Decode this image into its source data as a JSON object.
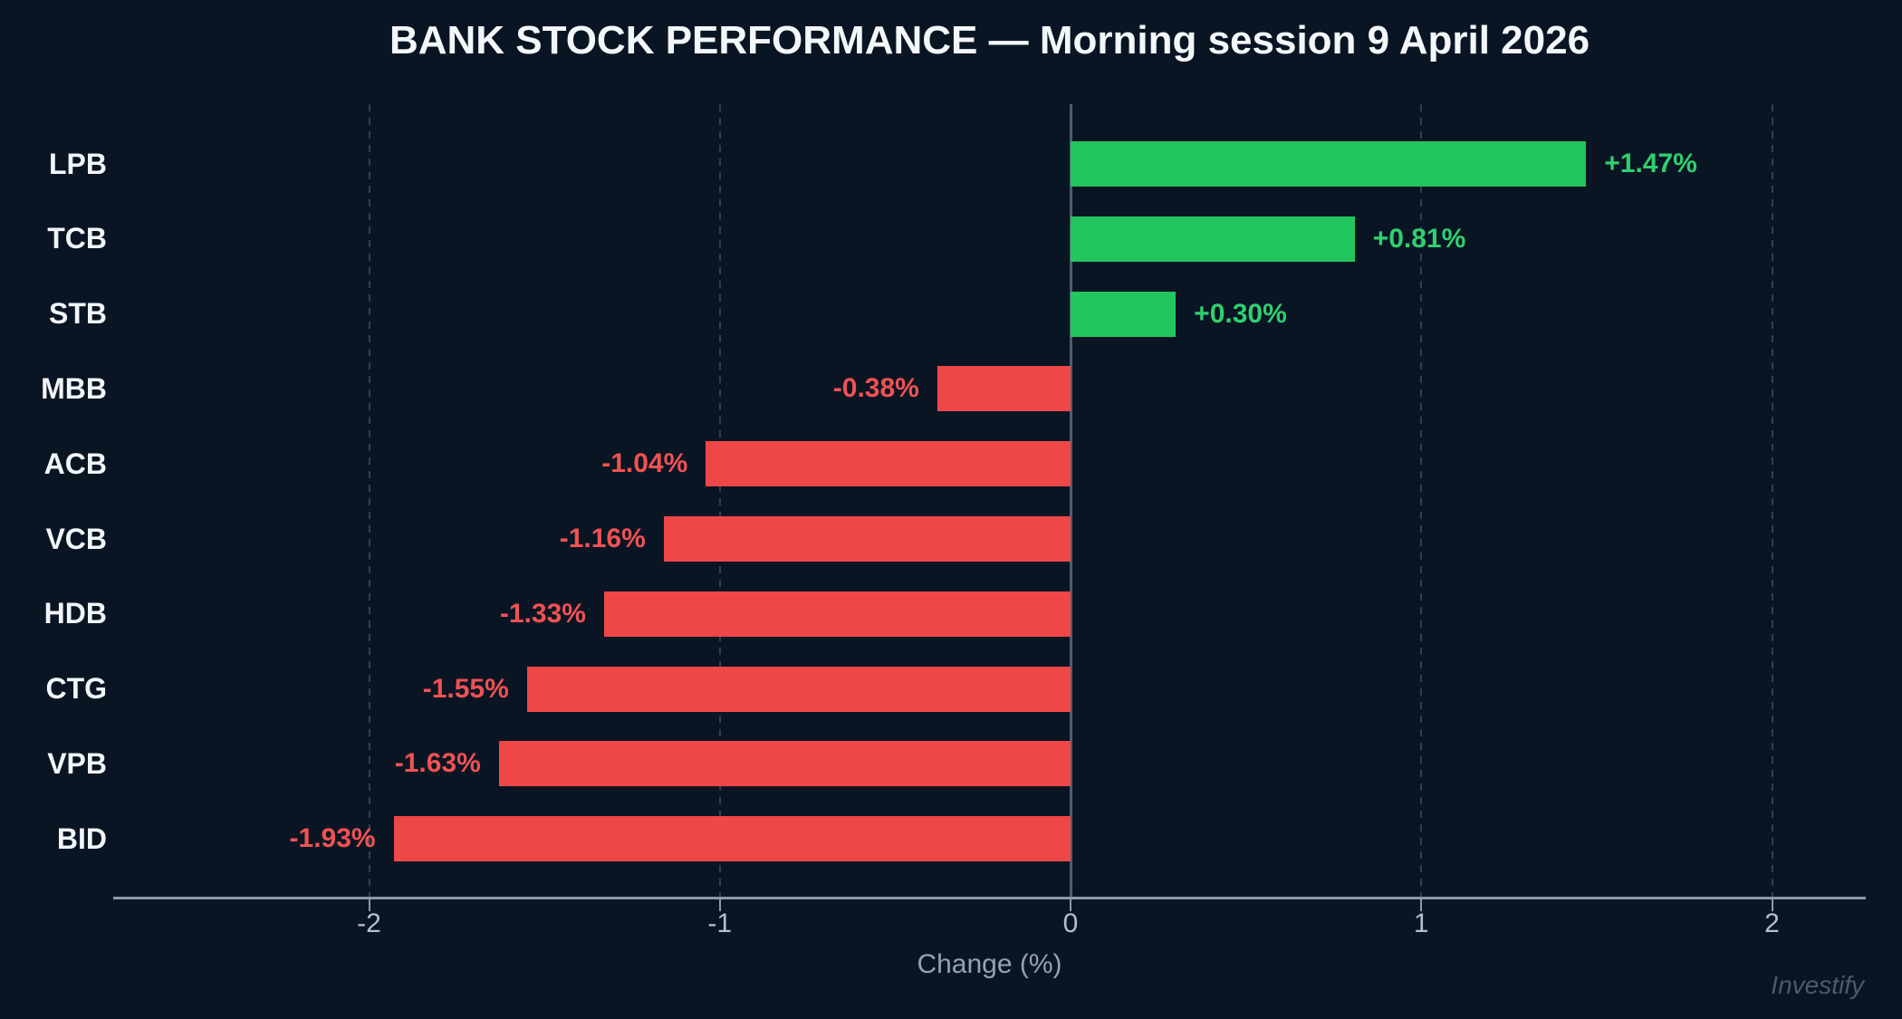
{
  "chart": {
    "title": "BANK STOCK PERFORMANCE — Morning session 9 April 2026",
    "xlabel": "Change (%)",
    "watermark": "Investify"
  },
  "chart_data": {
    "type": "bar",
    "orientation": "horizontal",
    "title": "BANK STOCK PERFORMANCE — Morning session 9 April 2026",
    "xlabel": "Change (%)",
    "ylabel": "",
    "categories": [
      "LPB",
      "TCB",
      "STB",
      "MBB",
      "ACB",
      "VCB",
      "HDB",
      "CTG",
      "VPB",
      "BID"
    ],
    "values": [
      1.47,
      0.81,
      0.3,
      -0.38,
      -1.04,
      -1.16,
      -1.33,
      -1.55,
      -1.63,
      -1.93
    ],
    "value_labels": [
      "+1.47%",
      "+0.81%",
      "+0.30%",
      "-0.38%",
      "-1.04%",
      "-1.16%",
      "-1.33%",
      "-1.55%",
      "-1.63%",
      "-1.93%"
    ],
    "x_ticks": [
      -2,
      -1,
      0,
      1,
      2
    ],
    "x_tick_labels": [
      "-2",
      "-1",
      "0",
      "1",
      "2"
    ],
    "xlim": [
      -2.73,
      2.27
    ],
    "grid": "vertical-dashed",
    "legend": "none",
    "watermark": "Investify",
    "colors": {
      "positive": "#22c55e",
      "negative": "#ef4747",
      "positive_label": "#2fd06e",
      "negative_label": "#f05252",
      "background": "#0a1524",
      "axis_line": "#8b9aab",
      "zero_line": "#4d5d72",
      "gridline": "#2c4156",
      "tick_label": "#b4bfca",
      "category_label": "#f2f5f8"
    }
  }
}
